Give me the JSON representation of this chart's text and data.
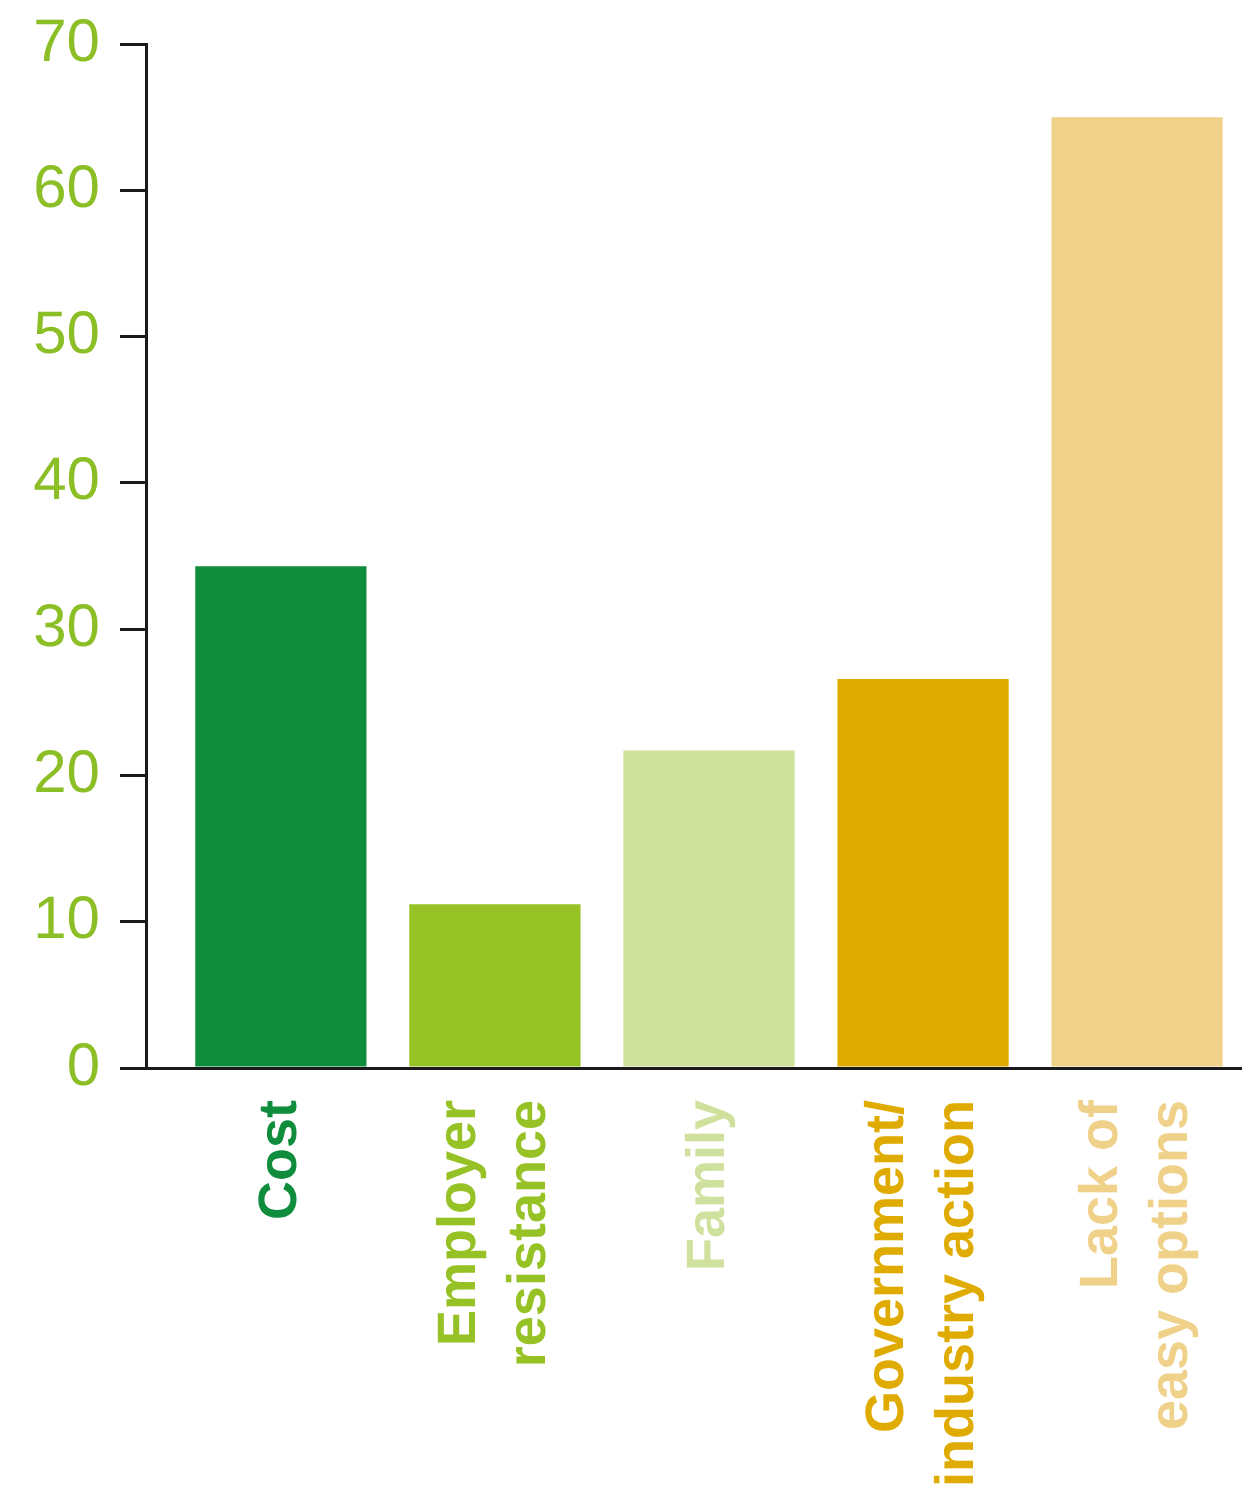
{
  "chart_data": {
    "type": "bar",
    "categories": [
      "Cost",
      "Employer\nresistance",
      "Family",
      "Government/\nindustry action",
      "Lack of\neasy options"
    ],
    "values": [
      34.3,
      11.2,
      21.7,
      26.6,
      65
    ],
    "colors": [
      "#0f8d3d",
      "#97c226",
      "#d0e09d",
      "#e0ab00",
      "#f0d18a"
    ],
    "ylim": [
      0,
      70
    ],
    "yticks": [
      0,
      10,
      20,
      30,
      40,
      50,
      60,
      70
    ]
  }
}
